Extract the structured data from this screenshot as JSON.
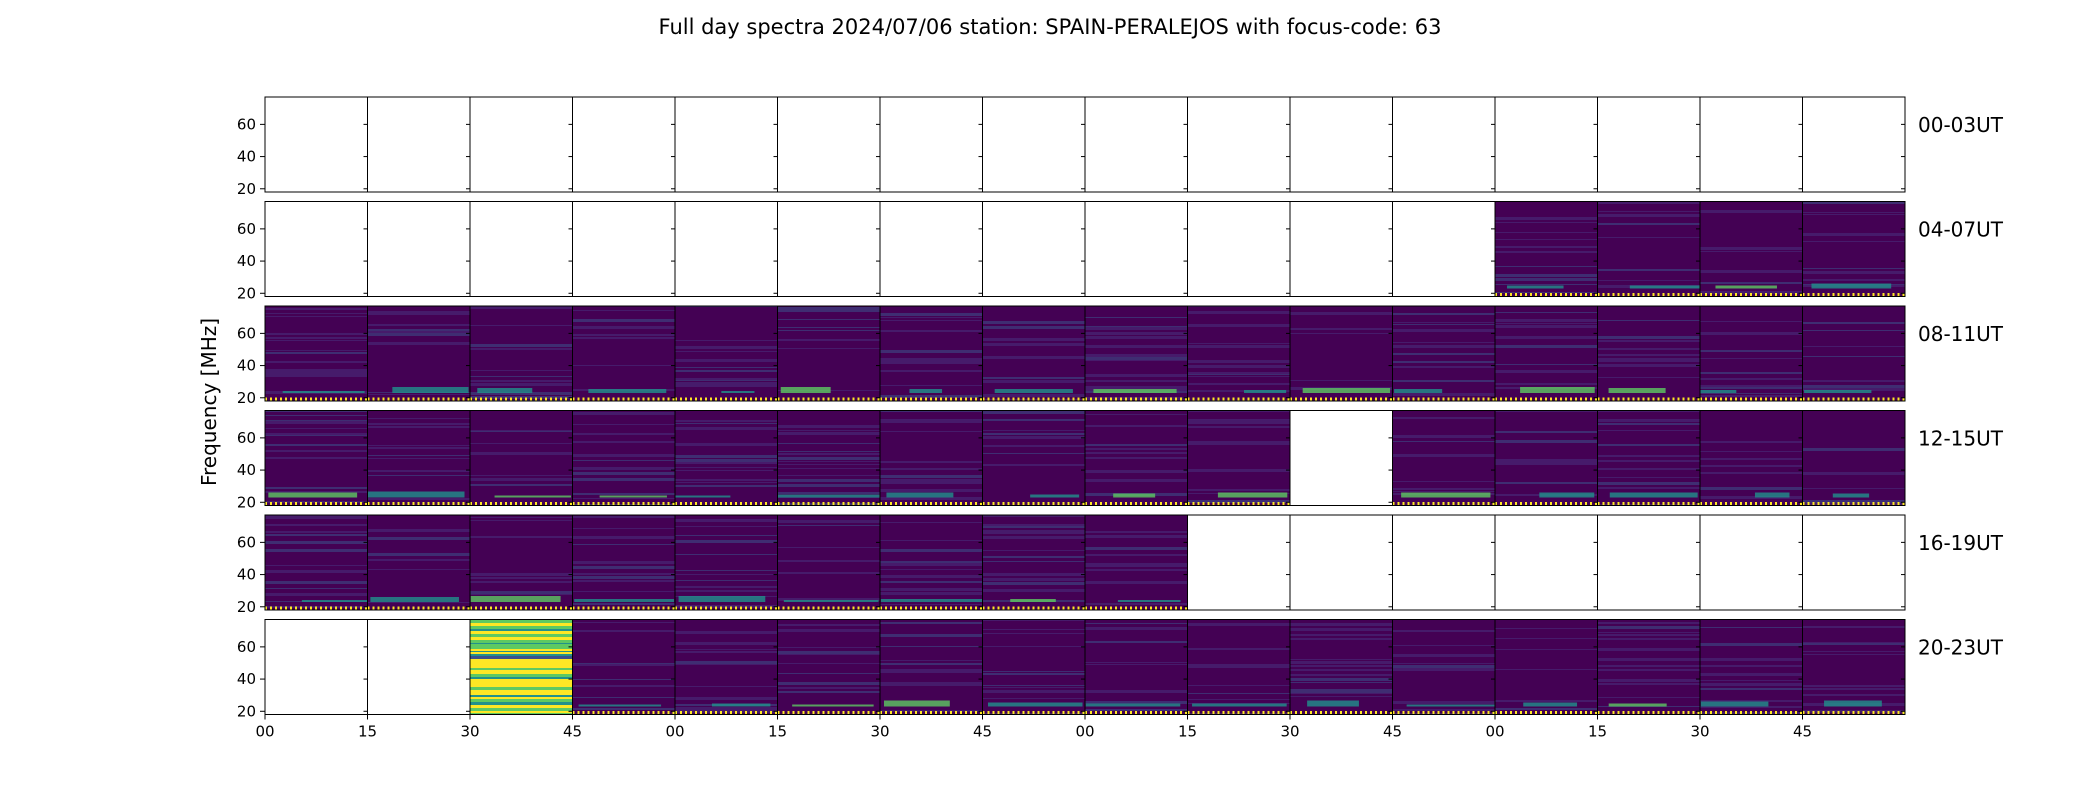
{
  "chart_data": {
    "type": "heatmap",
    "title": "Full day spectra 2024/07/06 station: SPAIN-PERALEJOS with focus-code: 63",
    "ylabel": "Frequency [MHz]",
    "ylim": [
      18,
      77
    ],
    "yticks": [
      20,
      40,
      60
    ],
    "xtick_labels": [
      "00",
      "15",
      "30",
      "45",
      "00",
      "15",
      "30",
      "45",
      "00",
      "15",
      "30",
      "45",
      "00",
      "15",
      "30",
      "45"
    ],
    "colormap": "viridis",
    "grid": false,
    "rows": [
      {
        "label": "00-03UT",
        "panels": [
          "empty",
          "empty",
          "empty",
          "empty",
          "empty",
          "empty",
          "empty",
          "empty",
          "empty",
          "empty",
          "empty",
          "empty",
          "empty",
          "empty",
          "empty",
          "empty"
        ]
      },
      {
        "label": "04-07UT",
        "panels": [
          "empty",
          "empty",
          "empty",
          "empty",
          "empty",
          "empty",
          "empty",
          "empty",
          "empty",
          "empty",
          "empty",
          "empty",
          "data",
          "data",
          "data",
          "data"
        ]
      },
      {
        "label": "08-11UT",
        "panels": [
          "data",
          "data",
          "data",
          "data",
          "data",
          "data",
          "data",
          "data",
          "data",
          "data",
          "data",
          "data",
          "data",
          "data",
          "data",
          "data"
        ]
      },
      {
        "label": "12-15UT",
        "panels": [
          "data",
          "data",
          "data",
          "data",
          "data",
          "data",
          "data",
          "data",
          "data",
          "data",
          "empty",
          "data",
          "data",
          "data",
          "data",
          "data"
        ]
      },
      {
        "label": "16-19UT",
        "panels": [
          "data",
          "data",
          "data",
          "data",
          "data",
          "data",
          "data",
          "data",
          "data",
          "empty",
          "empty",
          "empty",
          "empty",
          "empty",
          "empty",
          "empty"
        ]
      },
      {
        "label": "20-23UT",
        "panels": [
          "empty",
          "empty",
          "burst",
          "data",
          "data",
          "data",
          "data",
          "data",
          "data",
          "data",
          "data",
          "data",
          "data",
          "data",
          "data",
          "data"
        ]
      }
    ],
    "colors": {
      "background": "#440154",
      "low": "#3b528b",
      "mid": "#21918c",
      "high": "#5ec962",
      "peak": "#fde725"
    }
  }
}
